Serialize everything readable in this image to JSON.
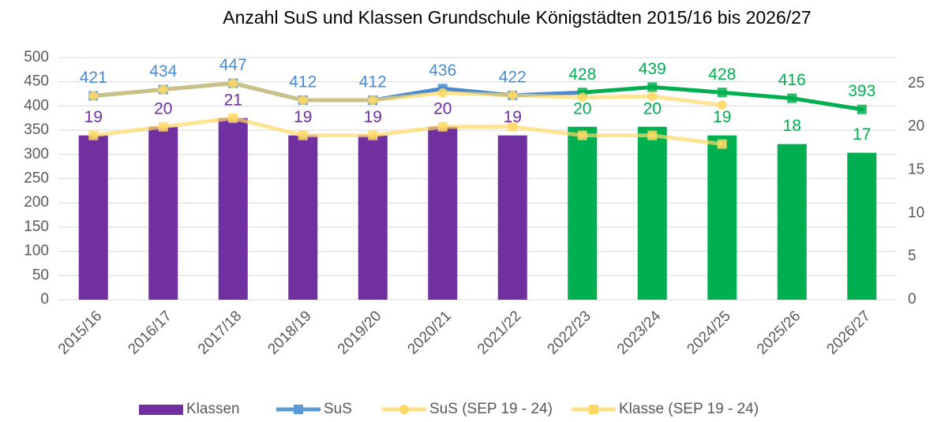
{
  "chart_data": {
    "type": "combo",
    "title": "Anzahl SuS und Klassen Grundschule Königstädten 2015/16 bis 2026/27",
    "categories": [
      "2015/16",
      "2016/17",
      "2017/18",
      "2018/19",
      "2019/20",
      "2020/21",
      "2021/22",
      "2022/23",
      "2023/24",
      "2024/25",
      "2025/26",
      "2026/27"
    ],
    "ylim": [
      0,
      500
    ],
    "yticks": [
      0,
      50,
      100,
      150,
      200,
      250,
      300,
      350,
      400,
      450,
      500
    ],
    "y2lim": [
      0,
      28
    ],
    "y2ticks": [
      0,
      5,
      10,
      15,
      20,
      25
    ],
    "grid": true,
    "legend": "bottom",
    "series": [
      {
        "name": "Klassen",
        "type": "bar",
        "axis": "y2",
        "color": "#7030a0",
        "colors": [
          "#7030a0",
          "#7030a0",
          "#7030a0",
          "#7030a0",
          "#7030a0",
          "#7030a0",
          "#7030a0",
          "#00b050",
          "#00b050",
          "#00b050",
          "#00b050",
          "#00b050"
        ],
        "values": [
          19,
          20,
          21,
          19,
          19,
          20,
          19,
          20,
          20,
          19,
          18,
          17
        ]
      },
      {
        "name": "SuS",
        "type": "line",
        "marker": "square",
        "color": "#5b9bd5",
        "colors": [
          "#4a8bd0",
          "#4a8bd0",
          "#4a8bd0",
          "#4a8bd0",
          "#4a8bd0",
          "#4a8bd0",
          "#4a8bd0",
          "#00b050",
          "#00b050",
          "#00b050",
          "#00b050",
          "#00b050"
        ],
        "values": [
          421,
          434,
          447,
          412,
          412,
          436,
          422,
          428,
          439,
          428,
          416,
          393
        ]
      },
      {
        "name": "SuS (SEP 19 - 24)",
        "type": "line",
        "marker": "circle",
        "color": "#ffd966",
        "values": [
          421,
          434,
          447,
          412,
          412,
          427,
          422,
          418,
          420,
          402,
          null,
          null
        ]
      },
      {
        "name": "Klasse (SEP 19 - 24)",
        "type": "line",
        "marker": "square",
        "axis": "y2",
        "color": "#ffd966",
        "values": [
          19,
          20,
          21,
          19,
          19,
          20,
          20,
          19,
          19,
          18,
          null,
          null
        ]
      }
    ]
  }
}
